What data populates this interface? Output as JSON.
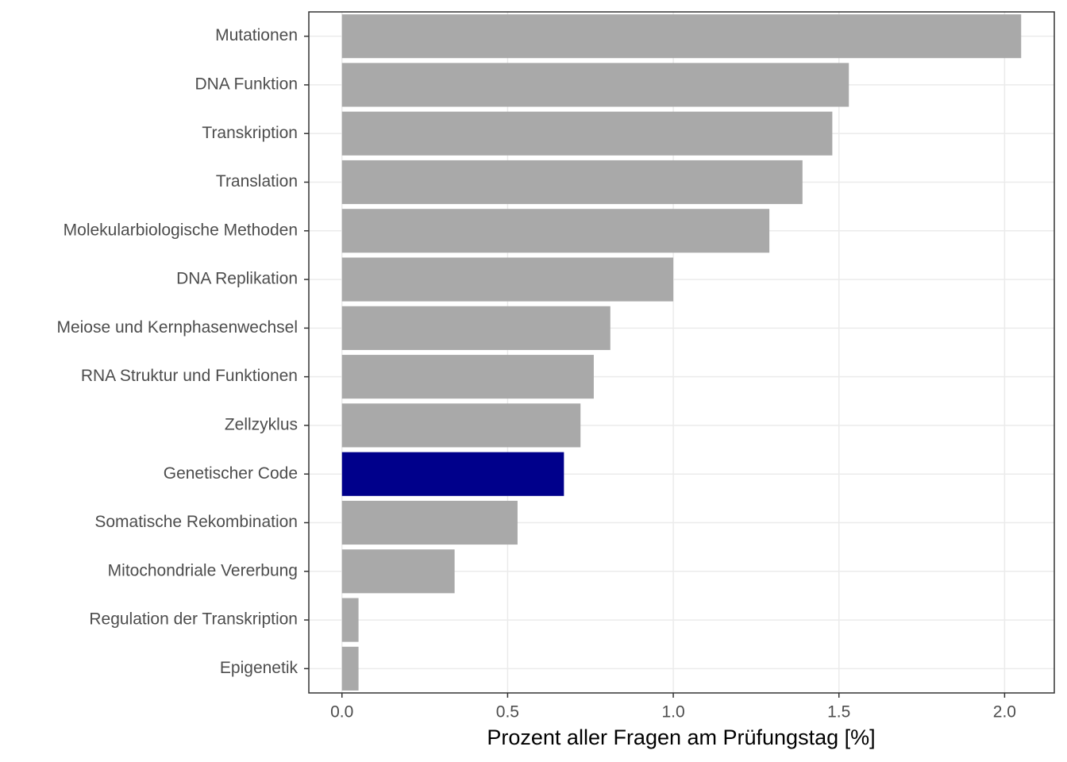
{
  "chart_data": {
    "type": "barh",
    "x_label": "Prozent aller Fragen am Prüfungstag [%]",
    "categories": [
      "Mutationen",
      "DNA Funktion",
      "Transkription",
      "Translation",
      "Molekularbiologische Methoden",
      "DNA Replikation",
      "Meiose und Kernphasenwechsel",
      "RNA Struktur und Funktionen",
      "Zellzyklus",
      "Genetischer Code",
      "Somatische Rekombination",
      "Mitochondriale Vererbung",
      "Regulation der Transkription",
      "Epigenetik"
    ],
    "values": [
      2.05,
      1.53,
      1.48,
      1.39,
      1.29,
      1.0,
      0.81,
      0.76,
      0.72,
      0.67,
      0.53,
      0.34,
      0.05,
      0.05
    ],
    "colors": [
      "#a9a9a9",
      "#a9a9a9",
      "#a9a9a9",
      "#a9a9a9",
      "#a9a9a9",
      "#a9a9a9",
      "#a9a9a9",
      "#a9a9a9",
      "#a9a9a9",
      "#00008b",
      "#a9a9a9",
      "#a9a9a9",
      "#a9a9a9",
      "#a9a9a9"
    ],
    "xlim": [
      -0.1,
      2.15
    ],
    "xticks": [
      {
        "value": 0,
        "label": "0.0"
      },
      0.5,
      {
        "value": 1,
        "label": "1.0"
      },
      1.5,
      {
        "value": 2,
        "label": "2.0"
      }
    ],
    "grid": true
  }
}
